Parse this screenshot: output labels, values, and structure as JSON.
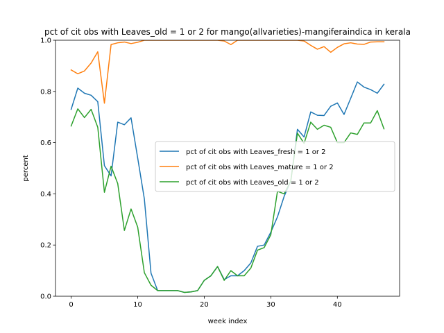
{
  "chart_data": {
    "type": "line",
    "title": "pct of cit obs with Leaves_old = 1 or 2 for mango(allvarieties)-mangiferaindica in kerala",
    "xlabel": "week index",
    "ylabel": "percent",
    "xlim": [
      -2.35,
      49.35
    ],
    "ylim": [
      0,
      1.0
    ],
    "xticks": [
      0,
      10,
      20,
      30,
      40
    ],
    "yticks": [
      0.0,
      0.2,
      0.4,
      0.6,
      0.8,
      1.0
    ],
    "xtick_labels": [
      "0",
      "10",
      "20",
      "30",
      "40"
    ],
    "ytick_labels": [
      "0.0",
      "0.2",
      "0.4",
      "0.6",
      "0.8",
      "1.0"
    ],
    "grid": false,
    "legend_position": "center-right",
    "x": [
      0,
      1,
      2,
      3,
      4,
      5,
      6,
      7,
      8,
      9,
      10,
      11,
      12,
      13,
      14,
      15,
      16,
      17,
      18,
      19,
      20,
      21,
      22,
      23,
      24,
      25,
      26,
      27,
      28,
      29,
      30,
      31,
      32,
      33,
      34,
      35,
      36,
      37,
      38,
      39,
      40,
      41,
      42,
      43,
      44,
      45,
      46,
      47
    ],
    "series": [
      {
        "name": "pct of cit obs with Leaves_fresh = 1 or 2",
        "color": "#1f77b4",
        "values": [
          0.73,
          0.813,
          0.793,
          0.785,
          0.76,
          0.51,
          0.47,
          0.68,
          0.67,
          0.697,
          0.54,
          0.38,
          0.09,
          0.022,
          0.022,
          0.022,
          0.022,
          0.015,
          0.017,
          0.022,
          0.062,
          0.08,
          0.116,
          0.065,
          0.08,
          0.08,
          0.1,
          0.13,
          0.195,
          0.2,
          0.25,
          0.31,
          0.39,
          0.45,
          0.652,
          0.622,
          0.72,
          0.707,
          0.706,
          0.742,
          0.755,
          0.71,
          0.773,
          0.837,
          0.817,
          0.807,
          0.793,
          0.828
        ]
      },
      {
        "name": "pct of cit obs with Leaves_mature = 1 or 2",
        "color": "#ff7f0e",
        "values": [
          0.884,
          0.869,
          0.88,
          0.911,
          0.955,
          0.754,
          0.983,
          0.99,
          0.993,
          0.987,
          0.992,
          1.0,
          1.0,
          1.0,
          1.0,
          1.0,
          1.0,
          1.0,
          1.0,
          1.0,
          1.0,
          1.0,
          1.0,
          0.997,
          0.983,
          1.0,
          1.0,
          1.0,
          1.0,
          1.0,
          1.0,
          1.0,
          1.0,
          1.0,
          1.0,
          0.997,
          0.98,
          0.965,
          0.975,
          0.953,
          0.972,
          0.986,
          0.99,
          0.985,
          0.984,
          0.993,
          0.994,
          0.994
        ]
      },
      {
        "name": "pct of cit obs with Leaves_old = 1 or 2",
        "color": "#2ca02c",
        "values": [
          0.665,
          0.732,
          0.698,
          0.73,
          0.66,
          0.406,
          0.508,
          0.44,
          0.257,
          0.341,
          0.27,
          0.092,
          0.043,
          0.022,
          0.022,
          0.022,
          0.022,
          0.015,
          0.017,
          0.022,
          0.062,
          0.08,
          0.116,
          0.062,
          0.1,
          0.08,
          0.08,
          0.11,
          0.18,
          0.19,
          0.24,
          0.41,
          0.4,
          0.45,
          0.637,
          0.597,
          0.68,
          0.652,
          0.668,
          0.66,
          0.6,
          0.6,
          0.638,
          0.632,
          0.677,
          0.677,
          0.725,
          0.654
        ]
      }
    ]
  }
}
